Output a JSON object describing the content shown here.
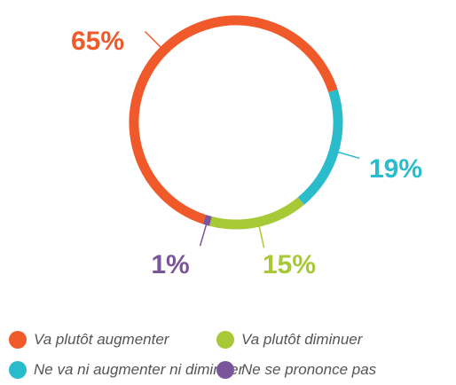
{
  "chart_data": {
    "type": "donut",
    "categories": [
      "Va plutôt augmenter",
      "Ne va ni augmenter ni diminuer",
      "Va plutôt diminuer",
      "Ne se prononce pas"
    ],
    "values": [
      65,
      19,
      15,
      1
    ],
    "value_labels": [
      "65%",
      "19%",
      "15%",
      "1%"
    ],
    "colors": [
      "#f05a2a",
      "#2bbccc",
      "#a8c936",
      "#7b559c"
    ]
  }
}
